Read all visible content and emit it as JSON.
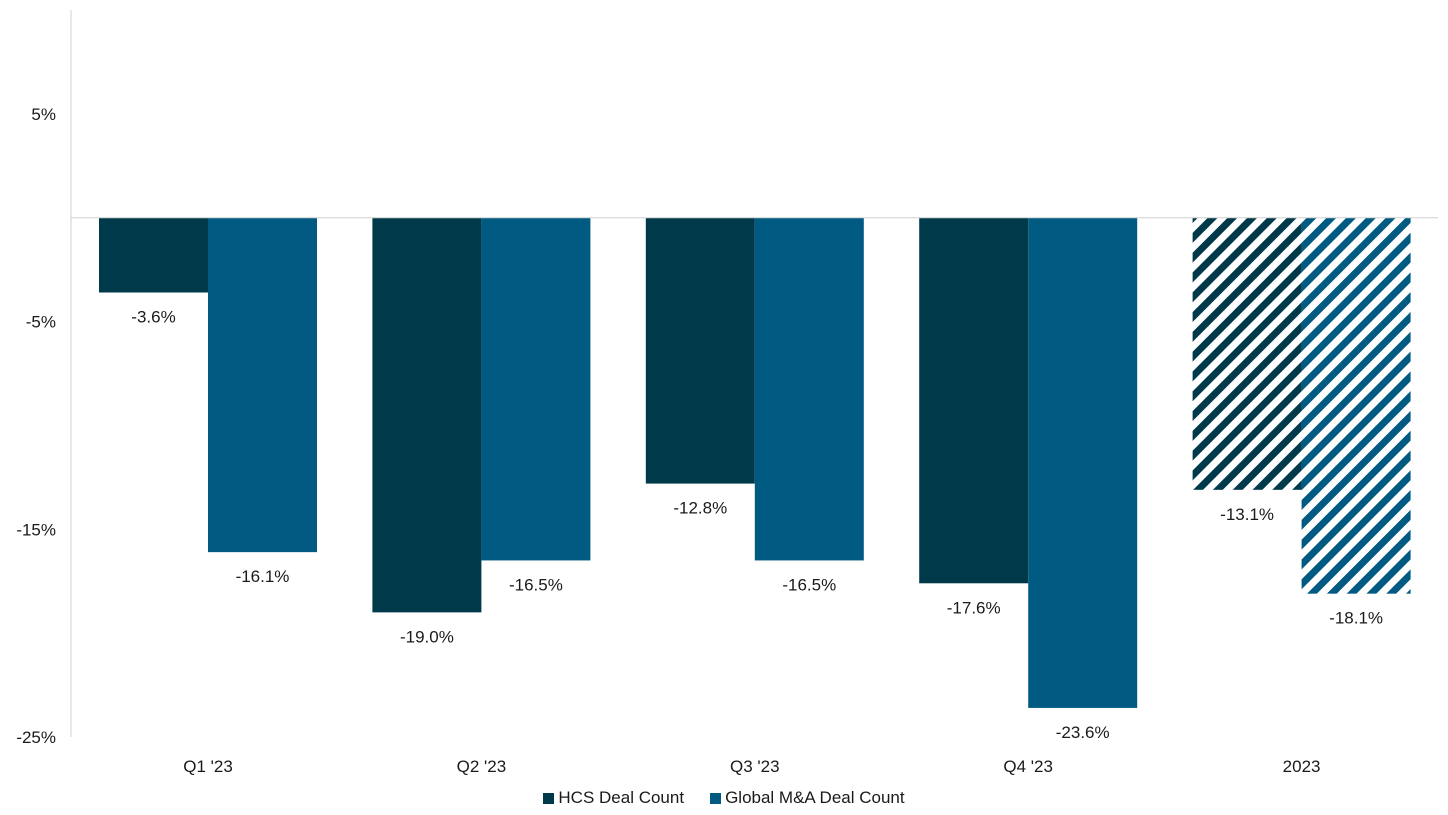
{
  "chart_data": {
    "type": "bar",
    "categories": [
      "Q1 '23",
      "Q2 '23",
      "Q3 '23",
      "Q4 '23",
      "2023"
    ],
    "series": [
      {
        "name": "HCS Deal Count",
        "values": [
          -3.6,
          -19.0,
          -12.8,
          -17.6,
          -13.1
        ],
        "labels": [
          "-3.6%",
          "-19.0%",
          "-12.8%",
          "-17.6%",
          "-13.1%"
        ],
        "color": "#003a4a"
      },
      {
        "name": "Global M&A Deal Count",
        "values": [
          -16.1,
          -16.5,
          -16.5,
          -23.6,
          -18.1
        ],
        "labels": [
          "-16.1%",
          "-16.5%",
          "-16.5%",
          "-23.6%",
          "-18.1%"
        ],
        "color": "#005a82"
      }
    ],
    "hatched_categories": [
      "2023"
    ],
    "y_ticks": [
      5,
      -5,
      -15,
      -25
    ],
    "y_tick_labels": [
      "5%",
      "-5%",
      "-15%",
      "-25%"
    ],
    "ylim": [
      -25,
      10
    ],
    "title": "",
    "xlabel": "",
    "ylabel": "",
    "legend_position": "bottom-center",
    "grid": false
  }
}
